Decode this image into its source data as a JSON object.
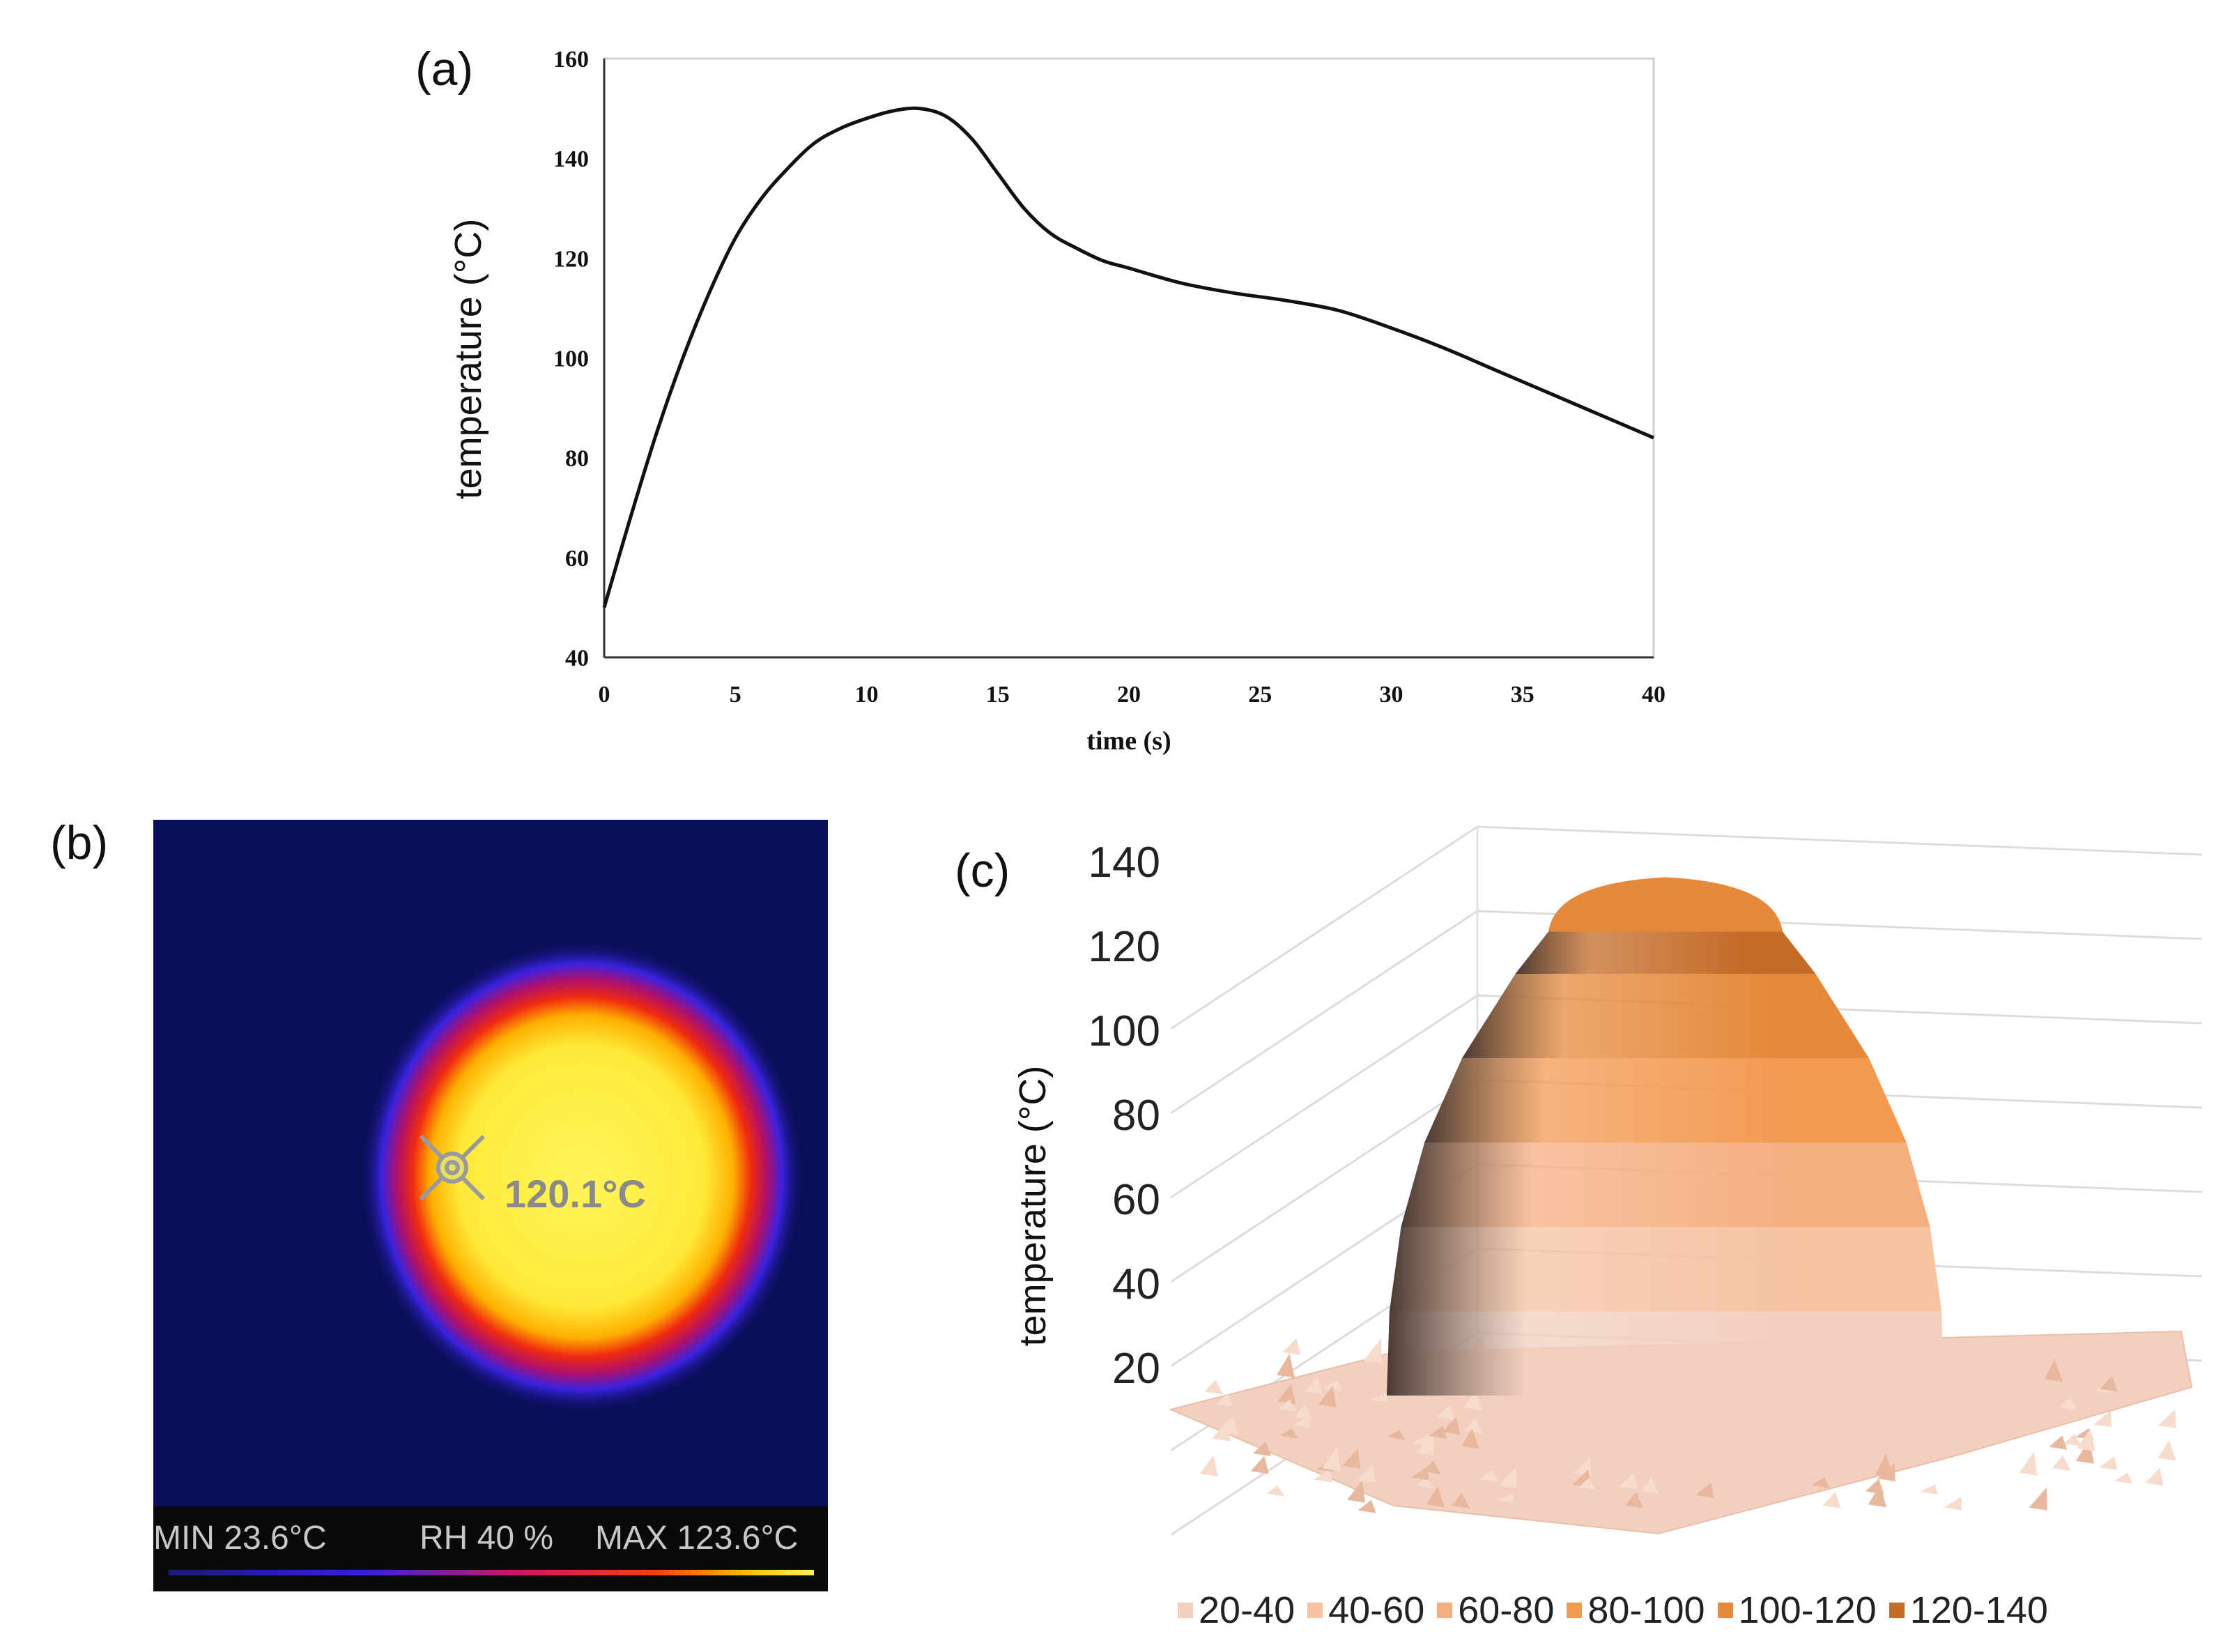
{
  "panels": {
    "a": {
      "label": "(a)"
    },
    "b": {
      "label": "(b)"
    },
    "c": {
      "label": "(c)"
    }
  },
  "chart_data": [
    {
      "panel": "a",
      "type": "line",
      "title": "",
      "xlabel": "time (s)",
      "ylabel": "temperature (°C)",
      "xlim": [
        0,
        40
      ],
      "ylim": [
        40,
        160
      ],
      "xticks": [
        0,
        5,
        10,
        15,
        20,
        25,
        30,
        35,
        40
      ],
      "yticks": [
        40,
        60,
        80,
        100,
        120,
        140,
        160
      ],
      "grid": false,
      "series": [
        {
          "name": "temperature",
          "x": [
            0,
            1,
            2,
            3,
            4,
            5,
            6,
            7,
            8,
            9,
            10,
            11,
            12,
            13,
            14,
            15,
            16,
            17,
            18,
            19,
            20,
            22,
            24,
            26,
            28,
            30,
            32,
            34,
            36,
            38,
            40
          ],
          "y": [
            50,
            68,
            85,
            100,
            113,
            124,
            132,
            138,
            143,
            146,
            148,
            149.5,
            150,
            148.5,
            144,
            137,
            130,
            125,
            122,
            119.5,
            118,
            115,
            113,
            111.5,
            109.5,
            106,
            102,
            97.5,
            93,
            88.5,
            84
          ]
        }
      ]
    },
    {
      "panel": "c",
      "type": "surface3d",
      "title": "",
      "ylabel": "temperature (°C)",
      "zlim": [
        20,
        140
      ],
      "zticks": [
        20,
        40,
        60,
        80,
        100,
        120,
        140
      ],
      "grid": true,
      "legend_position": "bottom",
      "bands": [
        {
          "name": "20-40",
          "color": "#F2CFBE"
        },
        {
          "name": "40-60",
          "color": "#F5C2A2"
        },
        {
          "name": "60-80",
          "color": "#F5AE80"
        },
        {
          "name": "80-100",
          "color": "#F39A52"
        },
        {
          "name": "100-120",
          "color": "#E58A3C"
        },
        {
          "name": "120-140",
          "color": "#C46B28"
        }
      ],
      "peak_value": 130
    }
  ],
  "thermal_image": {
    "spot_reading": "120.1°C",
    "min_label": "MIN 23.6°C",
    "rh_label": "RH 40 %",
    "max_label": "MAX 123.6°C",
    "palette": [
      "#0A0F5A",
      "#2A1FD0",
      "#C2185B",
      "#F02A10",
      "#FFB000",
      "#FFF24A"
    ]
  },
  "colors": {
    "line": "#111111",
    "frame": "#cfcfcf",
    "c_gridline": "#d9d9d9"
  }
}
